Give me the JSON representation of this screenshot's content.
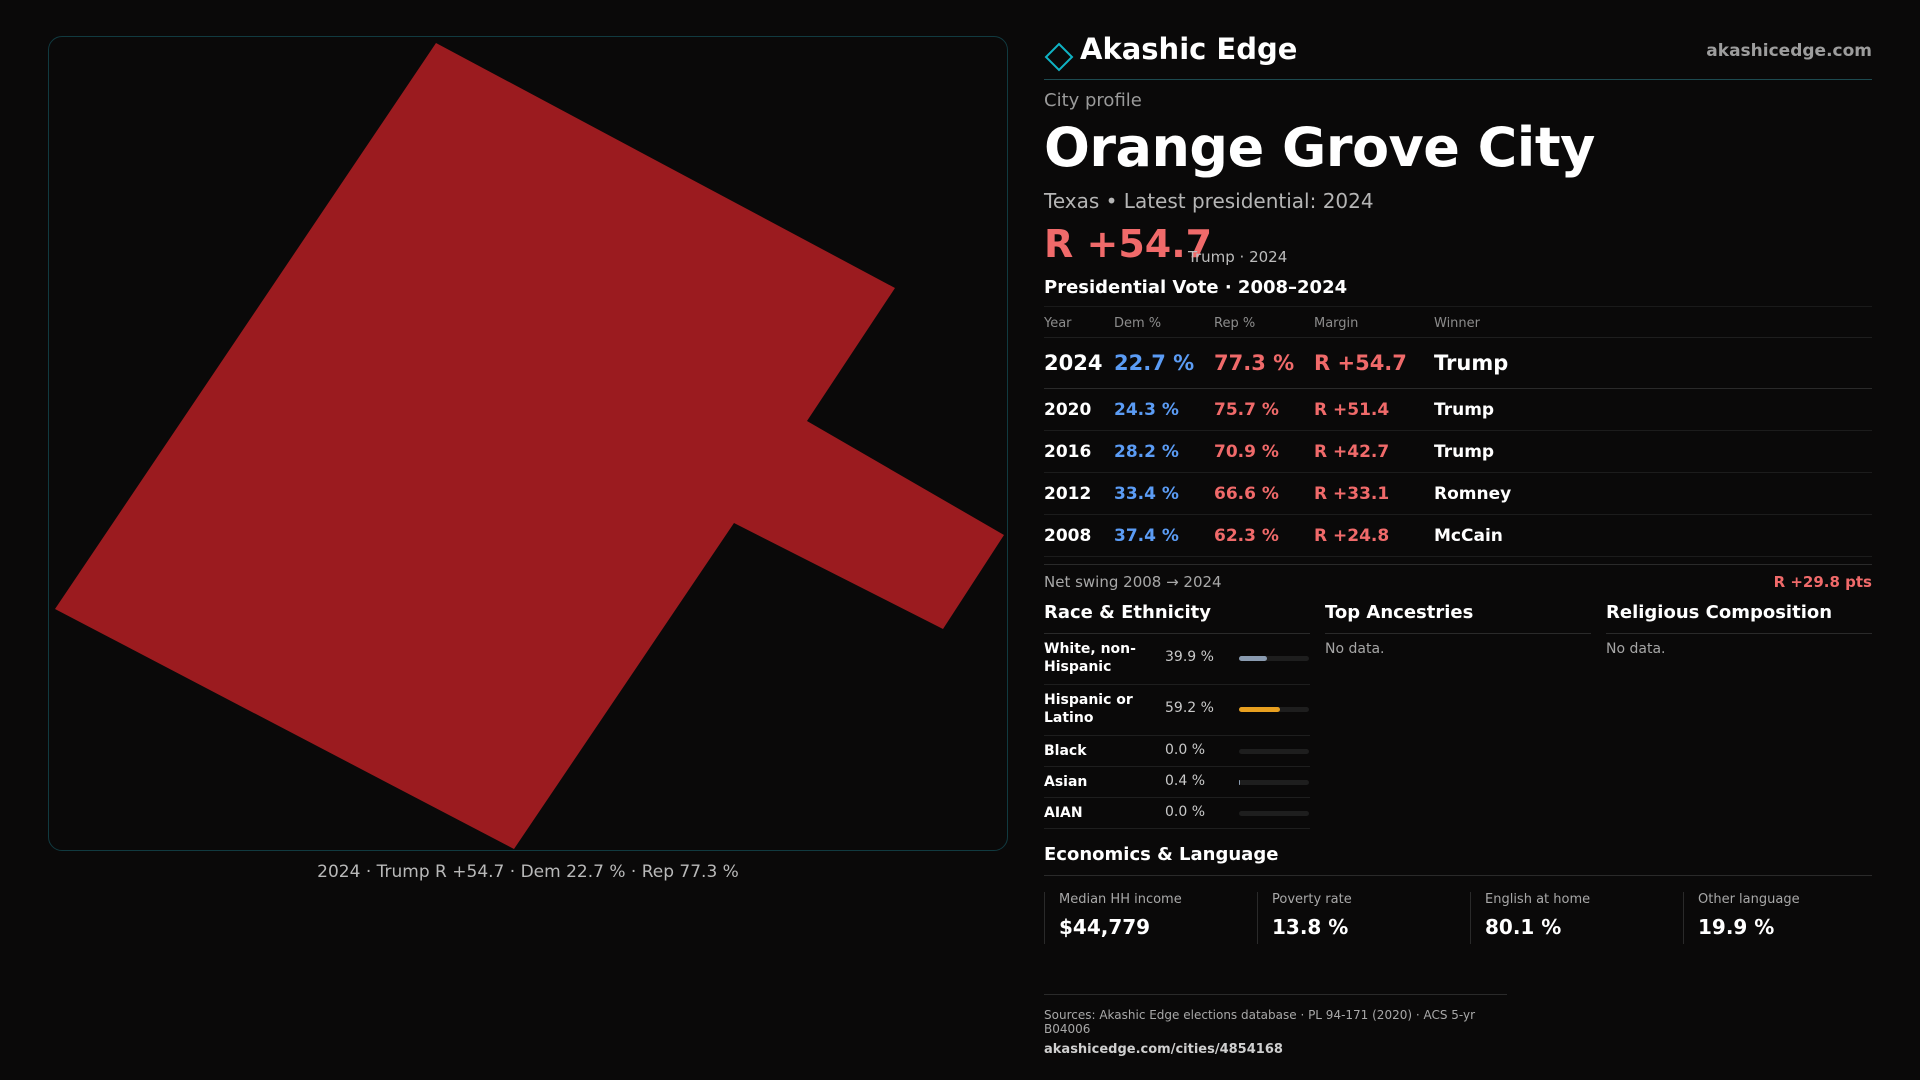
{
  "brand": {
    "name": "Akashic Edge",
    "url": "akashicedge.com",
    "accent_color": "#0fb3c4"
  },
  "profile": {
    "kicker": "City profile",
    "city": "Orange Grove City",
    "subtitle": "Texas • Latest presidential: 2024",
    "headline_margin": "R +54.7",
    "headline_note": "Trump · 2024"
  },
  "map": {
    "fill_color": "#9b1b1f",
    "caption": "2024 · Trump R +54.7 · Dem 22.7 % · Rep 77.3 %"
  },
  "vote": {
    "title": "Presidential Vote · 2008–2024",
    "headers": {
      "year": "Year",
      "dem": "Dem %",
      "rep": "Rep %",
      "margin": "Margin",
      "winner": "Winner"
    },
    "rows": [
      {
        "year": "2024",
        "dem": "22.7 %",
        "rep": "77.3 %",
        "margin": "R +54.7",
        "winner": "Trump"
      },
      {
        "year": "2020",
        "dem": "24.3 %",
        "rep": "75.7 %",
        "margin": "R +51.4",
        "winner": "Trump"
      },
      {
        "year": "2016",
        "dem": "28.2 %",
        "rep": "70.9 %",
        "margin": "R +42.7",
        "winner": "Trump"
      },
      {
        "year": "2012",
        "dem": "33.4 %",
        "rep": "66.6 %",
        "margin": "R +33.1",
        "winner": "Romney"
      },
      {
        "year": "2008",
        "dem": "37.4 %",
        "rep": "62.3 %",
        "margin": "R +24.8",
        "winner": "McCain"
      }
    ],
    "swing_label": "Net swing 2008 → 2024",
    "swing_value": "R +29.8 pts",
    "dem_color": "#5b9cf5",
    "rep_color": "#f06a6a"
  },
  "race": {
    "title": "Race & Ethnicity",
    "rows": [
      {
        "label": "White, non-Hispanic",
        "value": "39.9 %",
        "fraction": 0.399,
        "color": "#8a9bb0"
      },
      {
        "label": "Hispanic or Latino",
        "value": "59.2 %",
        "fraction": 0.592,
        "color": "#e8a020"
      },
      {
        "label": "Black",
        "value": "0.0 %",
        "fraction": 0.0,
        "color": "#8a9bb0"
      },
      {
        "label": "Asian",
        "value": "0.4 %",
        "fraction": 0.004,
        "color": "#8a9bb0"
      },
      {
        "label": "AIAN",
        "value": "0.0 %",
        "fraction": 0.0,
        "color": "#8a9bb0"
      }
    ]
  },
  "ancestries": {
    "title": "Top Ancestries",
    "empty": "No data."
  },
  "religion": {
    "title": "Religious Composition",
    "empty": "No data."
  },
  "economics": {
    "title": "Economics & Language",
    "cells": [
      {
        "label": "Median HH income",
        "value": "$44,779"
      },
      {
        "label": "Poverty rate",
        "value": "13.8 %"
      },
      {
        "label": "English at home",
        "value": "80.1 %"
      },
      {
        "label": "Other language",
        "value": "19.9 %"
      }
    ]
  },
  "sources": {
    "text": "Sources: Akashic Edge elections database · PL 94-171 (2020) · ACS 5-yr B04006",
    "url": "akashicedge.com/cities/4854168"
  }
}
